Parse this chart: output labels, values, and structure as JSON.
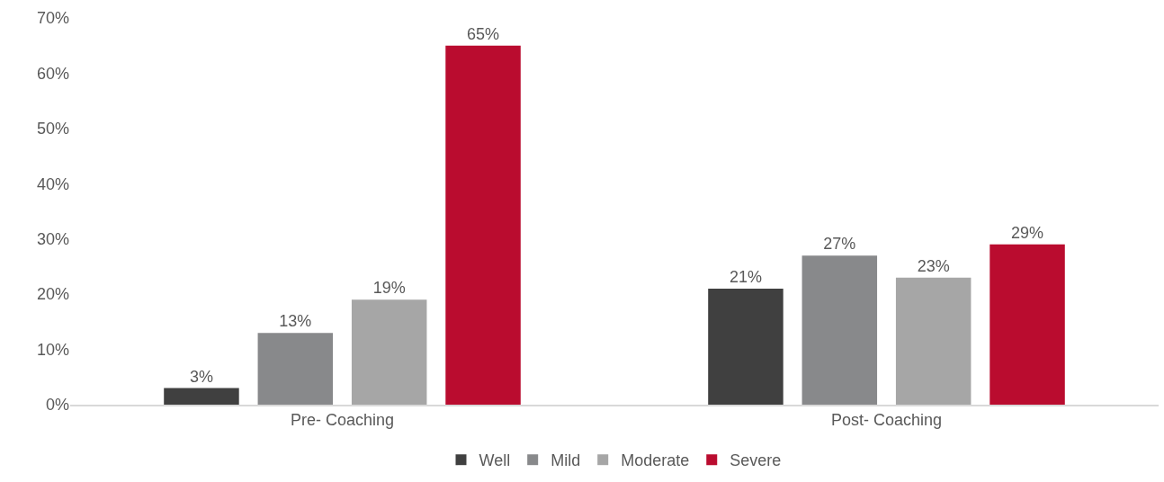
{
  "chart_data": {
    "type": "bar",
    "categories": [
      "Pre- Coaching",
      "Post- Coaching"
    ],
    "series": [
      {
        "name": "Well",
        "color": "#404040",
        "values": [
          3,
          21
        ],
        "value_labels": [
          "3%",
          "21%"
        ]
      },
      {
        "name": "Mild",
        "color": "#88898b",
        "values": [
          13,
          27
        ],
        "value_labels": [
          "13%",
          "27%"
        ]
      },
      {
        "name": "Moderate",
        "color": "#a6a6a6",
        "values": [
          19,
          23
        ],
        "value_labels": [
          "19%",
          "23%"
        ]
      },
      {
        "name": "Severe",
        "color": "#ba0c2f",
        "values": [
          65,
          29
        ],
        "value_labels": [
          "65%",
          "29%"
        ]
      }
    ],
    "ylim": [
      0,
      70
    ],
    "yticks": [
      {
        "value": 0,
        "label": "0%"
      },
      {
        "value": 10,
        "label": "10%"
      },
      {
        "value": 20,
        "label": "20%"
      },
      {
        "value": 30,
        "label": "30%"
      },
      {
        "value": 40,
        "label": "40%"
      },
      {
        "value": 50,
        "label": "50%"
      },
      {
        "value": 60,
        "label": "60%"
      },
      {
        "value": 70,
        "label": "70%"
      }
    ],
    "grid": false,
    "legend": "bottom"
  }
}
